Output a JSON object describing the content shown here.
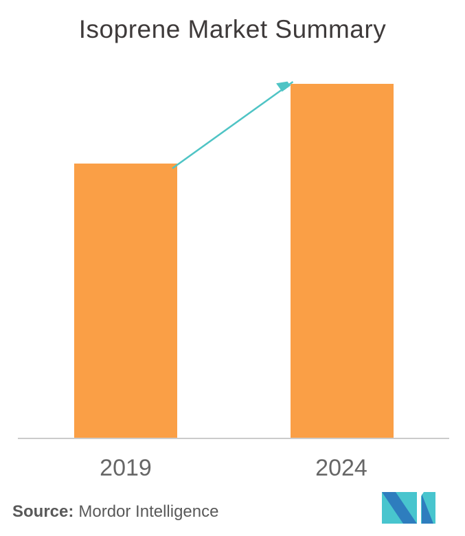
{
  "title": "Isoprene Market Summary",
  "source": {
    "label": "Source:",
    "text": "Mordor Intelligence"
  },
  "logo": {
    "name": "mordor-intelligence-logo",
    "teal": "#48C5CE",
    "blue": "#2E7DBE"
  },
  "colors": {
    "bar": "#FA9F46",
    "arrow": "#4FC4C5",
    "axis_line": "#CBCBCB",
    "title_text": "#3E3A3A",
    "tick_text": "#666666",
    "source_text": "#595959",
    "background": "#FFFFFF"
  },
  "chart_data": {
    "type": "bar",
    "title": "Isoprene Market Summary",
    "categories": [
      "2019",
      "2024"
    ],
    "values": [
      62,
      80
    ],
    "value_note": "No numeric axis shown; values are relative bar heights as % of plot height (2019 ≈ 62%, 2024 ≈ 80%)",
    "xlabel": "",
    "ylabel": "",
    "ylim": [
      0,
      100
    ],
    "grid": false,
    "legend": false,
    "annotations": [
      "teal growth arrow from top of 2019 bar to top of 2024 bar"
    ]
  }
}
